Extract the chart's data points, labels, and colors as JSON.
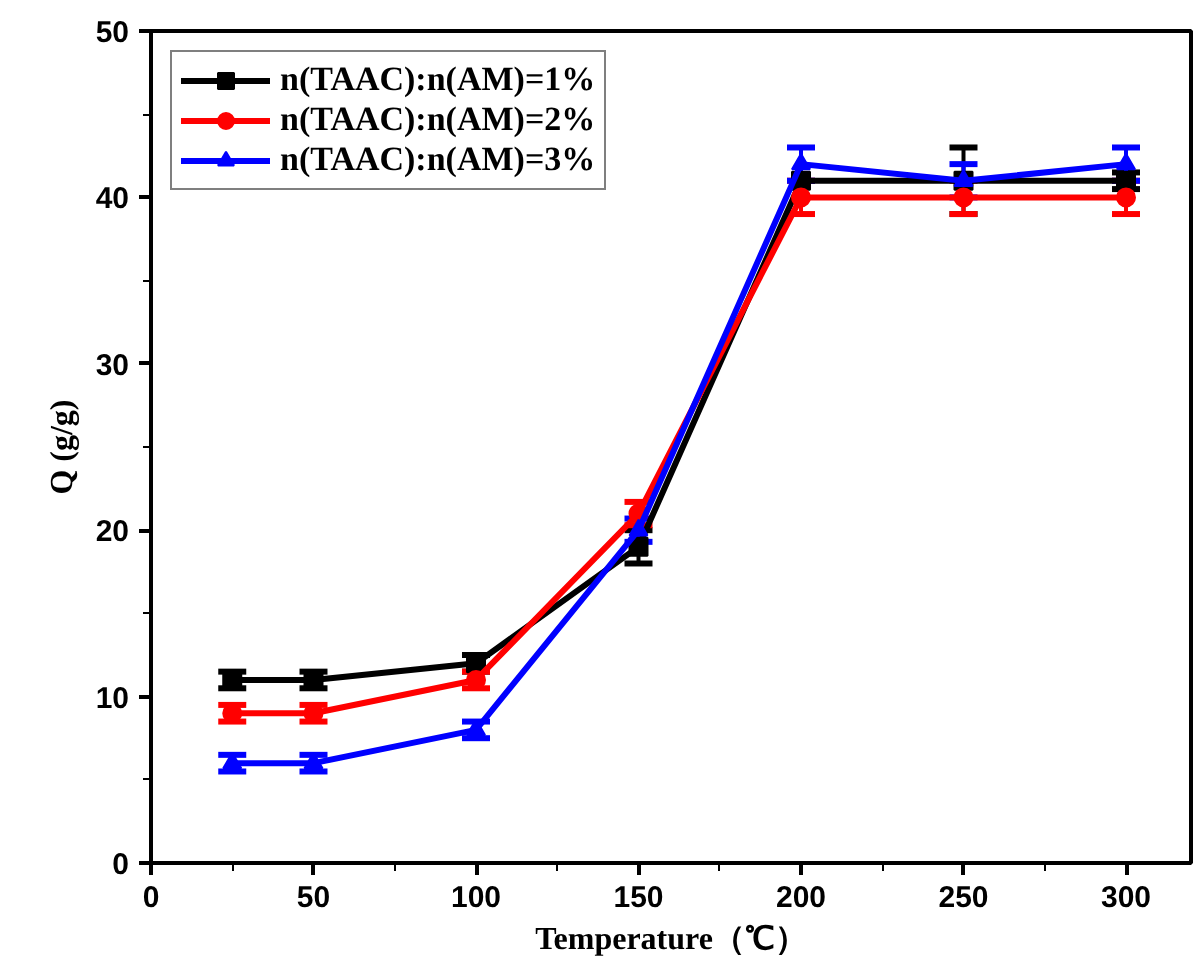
{
  "chart_data": {
    "type": "line",
    "xlabel": "Temperature（℃）",
    "ylabel": "Q (g/g)",
    "x": [
      25,
      50,
      100,
      150,
      200,
      250,
      300
    ],
    "xlim": [
      0,
      320
    ],
    "ylim": [
      0,
      50
    ],
    "xticks": [
      0,
      50,
      100,
      150,
      200,
      250,
      300
    ],
    "yticks": [
      0,
      10,
      20,
      30,
      40,
      50
    ],
    "series": [
      {
        "name": "n(TAAC):n(AM)=1%",
        "color": "#000000",
        "marker": "square",
        "values": [
          11,
          11,
          12,
          19,
          41,
          41,
          41
        ],
        "errors": [
          0.5,
          0.5,
          0.5,
          1,
          null,
          2,
          0.5
        ]
      },
      {
        "name": "n(TAAC):n(AM)=2%",
        "color": "#ff0000",
        "marker": "circle",
        "values": [
          9,
          9,
          11,
          21,
          40,
          40,
          40
        ],
        "errors": [
          0.5,
          0.5,
          0.5,
          0.7,
          1,
          1,
          1
        ]
      },
      {
        "name": "n(TAAC):n(AM)=3%",
        "color": "#0000ff",
        "marker": "triangle",
        "values": [
          6,
          6,
          8,
          20,
          42,
          41,
          42
        ],
        "errors": [
          0.5,
          0.5,
          0.5,
          0.7,
          1,
          1,
          1
        ]
      }
    ],
    "legend": "top left",
    "grid": false,
    "line_style": "solid"
  }
}
